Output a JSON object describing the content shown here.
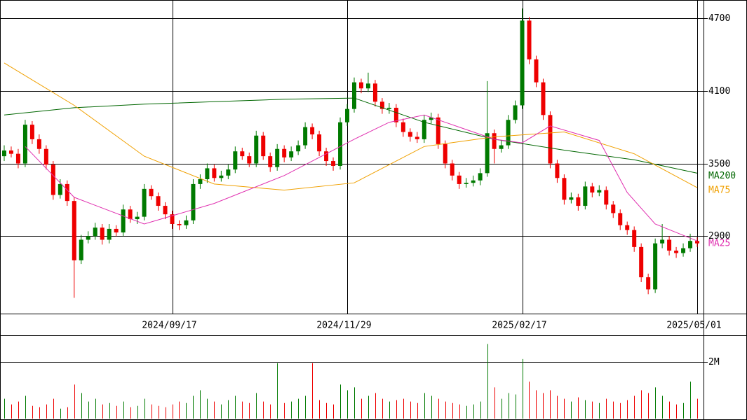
{
  "chart_data": [
    {
      "type": "candlestick",
      "up_color": "#007a00",
      "down_color": "#ee0000",
      "open": [
        3560,
        3607,
        3580,
        3500,
        3820,
        3700,
        3620,
        3490,
        3240,
        3330,
        3190,
        2700,
        2870,
        2900,
        2970,
        2870,
        2960,
        2930,
        3120,
        3040,
        3060,
        3290,
        3230,
        3150,
        3080,
        3000,
        2990,
        3030,
        3330,
        3370,
        3460,
        3380,
        3400,
        3450,
        3600,
        3560,
        3500,
        3730,
        3560,
        3470,
        3620,
        3550,
        3600,
        3650,
        3800,
        3740,
        3600,
        3520,
        3480,
        3840,
        3950,
        4170,
        4120,
        4160,
        4010,
        3950,
        3960,
        3840,
        3760,
        3720,
        3700,
        3860,
        3880,
        3660,
        3500,
        3400,
        3330,
        3340,
        3360,
        3420,
        3750,
        3620,
        3650,
        3860,
        3980,
        4680,
        4360,
        4170,
        3900,
        3500,
        3380,
        3200,
        3220,
        3150,
        3310,
        3260,
        3280,
        3160,
        3090,
        2990,
        2950,
        2810,
        2560,
        2460,
        2840,
        2870,
        2780,
        2760,
        2800,
        2860
      ],
      "high": [
        3650,
        3640,
        3620,
        3860,
        3850,
        3740,
        3650,
        3520,
        3370,
        3360,
        3220,
        2910,
        2940,
        3010,
        3000,
        3000,
        2990,
        3160,
        3150,
        3100,
        3330,
        3320,
        3260,
        3180,
        3110,
        3030,
        3070,
        3370,
        3410,
        3500,
        3490,
        3440,
        3490,
        3640,
        3630,
        3590,
        3770,
        3760,
        3590,
        3660,
        3650,
        3640,
        3690,
        3840,
        3830,
        3770,
        3630,
        3550,
        3880,
        3990,
        4210,
        4200,
        4250,
        4190,
        4040,
        4000,
        3990,
        3870,
        3790,
        3760,
        3900,
        3920,
        3910,
        3690,
        3530,
        3430,
        3380,
        3400,
        3460,
        4180,
        3780,
        3690,
        3900,
        4020,
        4780,
        4710,
        4390,
        4200,
        3930,
        3530,
        3410,
        3260,
        3250,
        3350,
        3340,
        3320,
        3310,
        3190,
        3120,
        3020,
        2980,
        2840,
        2590,
        2880,
        3000,
        2900,
        2810,
        2840,
        2920,
        2890
      ],
      "low": [
        3520,
        3550,
        3460,
        3470,
        3660,
        3580,
        3450,
        3200,
        3210,
        3150,
        2390,
        2670,
        2840,
        2870,
        2830,
        2840,
        2900,
        2900,
        3010,
        3000,
        3030,
        3200,
        3110,
        3040,
        2960,
        2950,
        2960,
        3000,
        3290,
        3340,
        3350,
        3350,
        3370,
        3420,
        3530,
        3470,
        3470,
        3530,
        3430,
        3440,
        3510,
        3520,
        3570,
        3620,
        3700,
        3560,
        3480,
        3440,
        3450,
        3810,
        3920,
        4080,
        4090,
        3970,
        3910,
        3910,
        3800,
        3720,
        3680,
        3670,
        3670,
        3830,
        3620,
        3460,
        3360,
        3290,
        3300,
        3310,
        3320,
        3390,
        3500,
        3590,
        3620,
        3830,
        3950,
        4320,
        4130,
        3860,
        3460,
        3340,
        3160,
        3170,
        3110,
        3120,
        3220,
        3230,
        3120,
        3050,
        2950,
        2910,
        2770,
        2520,
        2420,
        2430,
        2800,
        2740,
        2720,
        2730,
        2770,
        2810
      ],
      "close": [
        3607,
        3580,
        3500,
        3820,
        3700,
        3620,
        3490,
        3240,
        3330,
        3190,
        2700,
        2870,
        2900,
        2970,
        2870,
        2960,
        2930,
        3120,
        3040,
        3060,
        3290,
        3230,
        3150,
        3080,
        3000,
        2990,
        3030,
        3330,
        3370,
        3460,
        3380,
        3400,
        3450,
        3600,
        3560,
        3500,
        3730,
        3560,
        3470,
        3620,
        3550,
        3600,
        3650,
        3800,
        3740,
        3600,
        3520,
        3480,
        3840,
        3950,
        4170,
        4120,
        4160,
        4010,
        3950,
        3960,
        3840,
        3760,
        3720,
        3700,
        3860,
        3880,
        3660,
        3500,
        3400,
        3330,
        3340,
        3360,
        3420,
        3750,
        3620,
        3650,
        3860,
        3980,
        4680,
        4360,
        4170,
        3900,
        3500,
        3380,
        3200,
        3220,
        3150,
        3310,
        3260,
        3280,
        3160,
        3090,
        2990,
        2950,
        2810,
        2560,
        2460,
        2840,
        2870,
        2780,
        2760,
        2800,
        2860,
        2840
      ],
      "series": [
        {
          "name": "MA200",
          "color": "#006600",
          "x": [
            0,
            10,
            20,
            30,
            40,
            50,
            60,
            70,
            80,
            90,
            99
          ],
          "values": [
            3900,
            3960,
            3990,
            4010,
            4030,
            4040,
            3840,
            3700,
            3610,
            3530,
            3420
          ]
        },
        {
          "name": "MA75",
          "color": "#f0a000",
          "x": [
            0,
            10,
            20,
            30,
            40,
            50,
            60,
            70,
            80,
            90,
            99
          ],
          "values": [
            4330,
            3980,
            3560,
            3330,
            3280,
            3340,
            3640,
            3720,
            3760,
            3580,
            3300
          ]
        },
        {
          "name": "MA25",
          "color": "#e030b0",
          "x": [
            3,
            10,
            20,
            30,
            40,
            45,
            50,
            55,
            60,
            65,
            70,
            74,
            78,
            85,
            89,
            93,
            99
          ],
          "values": [
            3640,
            3220,
            3000,
            3170,
            3400,
            3550,
            3700,
            3840,
            3900,
            3800,
            3700,
            3670,
            3810,
            3690,
            3260,
            3000,
            2860
          ]
        }
      ],
      "xlim": [
        -0.6,
        99.9
      ],
      "xticks": [
        {
          "value": 24,
          "label": "2024/09/17"
        },
        {
          "value": 49,
          "label": "2024/11/29"
        },
        {
          "value": 74,
          "label": "2025/02/17"
        },
        {
          "value": 99,
          "label": "2025/05/01"
        }
      ],
      "ylim": [
        2260,
        4850
      ],
      "yticks": [
        2900,
        3500,
        4100,
        4700
      ],
      "grid": true
    },
    {
      "type": "bar",
      "values": [
        700000,
        500000,
        600000,
        800000,
        450000,
        400000,
        500000,
        700000,
        350000,
        400000,
        1200000,
        900000,
        600000,
        700000,
        500000,
        550000,
        450000,
        600000,
        400000,
        450000,
        700000,
        500000,
        450000,
        400000,
        500000,
        600000,
        550000,
        800000,
        1000000,
        700000,
        600000,
        500000,
        650000,
        800000,
        600000,
        550000,
        900000,
        600000,
        500000,
        1950000,
        550000,
        600000,
        700000,
        800000,
        1950000,
        650000,
        550000,
        500000,
        1200000,
        1000000,
        1100000,
        700000,
        800000,
        900000,
        700000,
        600000,
        650000,
        700000,
        600000,
        550000,
        900000,
        800000,
        700000,
        600000,
        550000,
        500000,
        450000,
        500000,
        600000,
        2630000,
        1100000,
        700000,
        900000,
        850000,
        2100000,
        1300000,
        1000000,
        900000,
        1000000,
        800000,
        700000,
        600000,
        750000,
        650000,
        600000,
        550000,
        700000,
        600000,
        550000,
        650000,
        800000,
        1000000,
        900000,
        1100000,
        800000,
        600000,
        500000,
        550000,
        1300000,
        700000
      ],
      "xlim": [
        -0.6,
        99.9
      ],
      "ylim": [
        0,
        2910000
      ],
      "yticks": [
        {
          "value": 2000000,
          "label": "2M"
        }
      ],
      "grid": true
    }
  ]
}
